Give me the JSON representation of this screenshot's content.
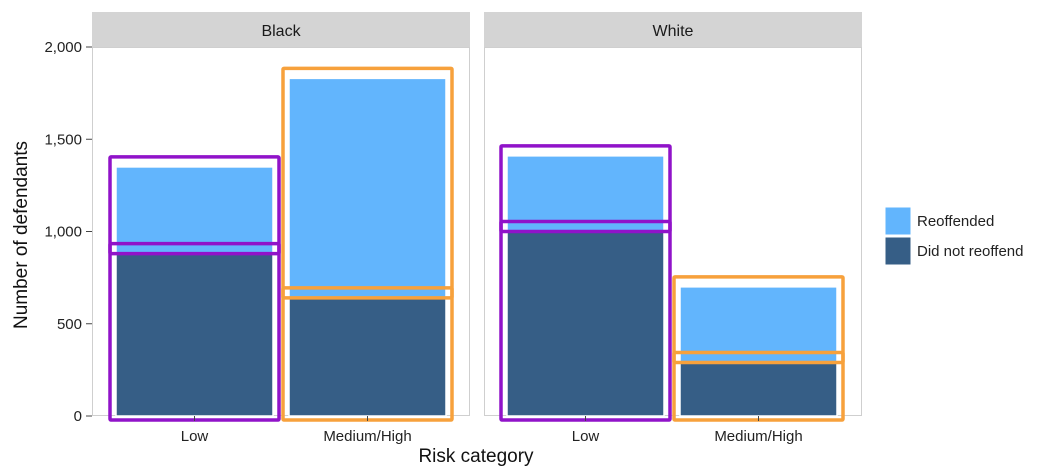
{
  "chart_data": {
    "type": "bar",
    "stacked": true,
    "facet_by": [
      "Black",
      "White"
    ],
    "categories": [
      "Low",
      "Medium/High"
    ],
    "xlabel": "Risk category",
    "ylabel": "Number of defendants",
    "ylim": [
      0,
      2000
    ],
    "yticks": [
      0,
      500,
      1000,
      1500,
      2000
    ],
    "ytick_labels": [
      "0",
      "500",
      "1,000",
      "1,500",
      "2,000"
    ],
    "legend_position": "right",
    "series": [
      {
        "name": "Did not reoffend",
        "color": "#365e86"
      },
      {
        "name": "Reoffended",
        "color": "#62b5fd"
      }
    ],
    "facets": [
      {
        "label": "Black",
        "values": {
          "Did not reoffend": [
            880,
            640
          ],
          "Reoffended": [
            470,
            1190
          ]
        }
      },
      {
        "label": "White",
        "values": {
          "Did not reoffend": [
            1000,
            290
          ],
          "Reoffended": [
            410,
            410
          ]
        }
      }
    ],
    "highlight_colors": {
      "Low": "#9013c9",
      "Medium/High": "#f7a13c"
    }
  }
}
